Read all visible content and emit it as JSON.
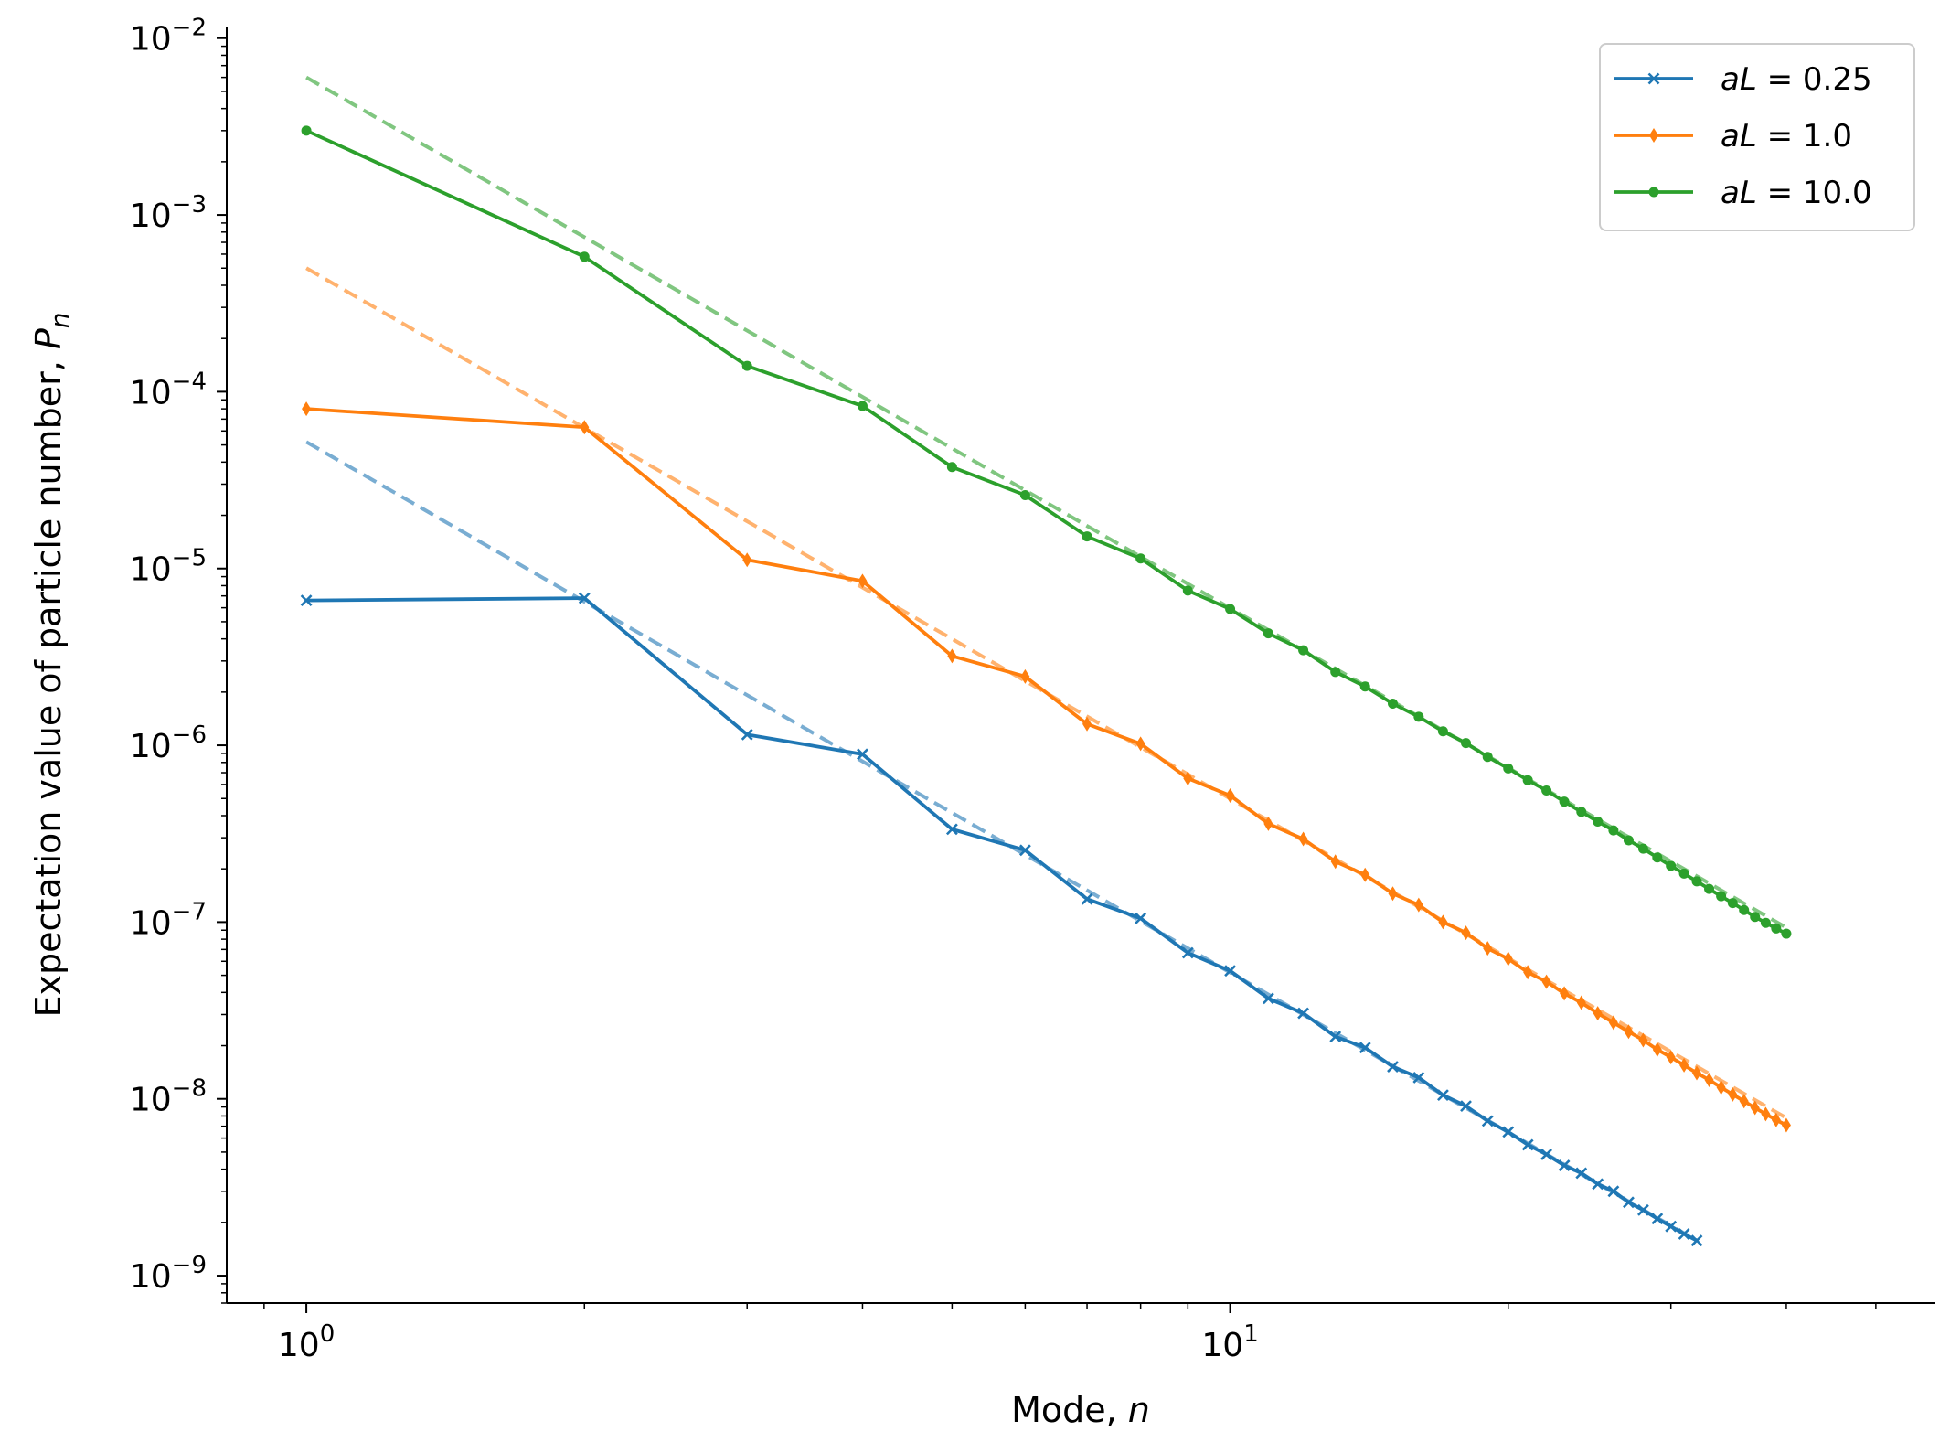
{
  "chart_data": {
    "type": "line",
    "xscale": "log",
    "yscale": "log",
    "xlabel": "Mode, n",
    "ylabel": "Expectation value of particle number, P_n",
    "xlim": [
      0.82,
      58
    ],
    "ylim": [
      7e-10,
      0.0115
    ],
    "x_ticks": [
      {
        "base": "10",
        "exp": "0",
        "value": 1
      },
      {
        "base": "10",
        "exp": "1",
        "value": 10
      }
    ],
    "y_ticks": [
      {
        "base": "10",
        "exp": "−2",
        "value": 0.01
      },
      {
        "base": "10",
        "exp": "−3",
        "value": 0.001
      },
      {
        "base": "10",
        "exp": "−4",
        "value": 0.0001
      },
      {
        "base": "10",
        "exp": "−5",
        "value": 1e-05
      },
      {
        "base": "10",
        "exp": "−6",
        "value": 1e-06
      },
      {
        "base": "10",
        "exp": "−7",
        "value": 1e-07
      },
      {
        "base": "10",
        "exp": "−8",
        "value": 1e-08
      },
      {
        "base": "10",
        "exp": "−9",
        "value": 1e-09
      }
    ],
    "grid": false,
    "legend_position": "top-right",
    "series": [
      {
        "name": "aL = 0.25",
        "legend_label": {
          "var": "aL",
          "eq": " = 0.25"
        },
        "color": "#1f77b4",
        "marker": "x",
        "x_start": 1,
        "values": [
          6.6e-06,
          6.8e-06,
          1.15e-06,
          8.9e-07,
          3.35e-07,
          2.55e-07,
          1.35e-07,
          1.05e-07,
          6.7e-08,
          5.3e-08,
          3.7e-08,
          3.05e-08,
          2.25e-08,
          1.95e-08,
          1.52e-08,
          1.32e-08,
          1.05e-08,
          9.1e-09,
          7.5e-09,
          6.5e-09,
          5.5e-09,
          4.85e-09,
          4.2e-09,
          3.8e-09,
          3.3e-09,
          3e-09,
          2.6e-09,
          2.35e-09,
          2.1e-09,
          1.9e-09,
          1.72e-09,
          1.58e-09
        ],
        "fit": {
          "x": [
            1,
            32
          ],
          "y": [
            5.2e-05,
            1.58e-09
          ]
        }
      },
      {
        "name": "aL = 1.0",
        "legend_label": {
          "var": "aL",
          "eq": " = 1.0"
        },
        "color": "#ff7f0e",
        "marker": "diamond",
        "x_start": 1,
        "values": [
          8e-05,
          6.3e-05,
          1.12e-05,
          8.5e-06,
          3.2e-06,
          2.45e-06,
          1.32e-06,
          1.02e-06,
          6.5e-07,
          5.2e-07,
          3.6e-07,
          2.95e-07,
          2.2e-07,
          1.85e-07,
          1.45e-07,
          1.25e-07,
          1e-07,
          8.7e-08,
          7.1e-08,
          6.2e-08,
          5.2e-08,
          4.6e-08,
          3.95e-08,
          3.5e-08,
          3.05e-08,
          2.7e-08,
          2.4e-08,
          2.15e-08,
          1.9e-08,
          1.72e-08,
          1.55e-08,
          1.4e-08,
          1.28e-08,
          1.16e-08,
          1.06e-08,
          9.7e-09,
          8.9e-09,
          8.2e-09,
          7.6e-09,
          7.1e-09
        ],
        "fit": {
          "x": [
            1,
            40
          ],
          "y": [
            0.0005,
            7.8e-09
          ]
        }
      },
      {
        "name": "aL = 10.0",
        "legend_label": {
          "var": "aL",
          "eq": " = 10.0"
        },
        "color": "#2ca02c",
        "marker": "dot",
        "x_start": 1,
        "values": [
          0.003,
          0.00058,
          0.00014,
          8.3e-05,
          3.75e-05,
          2.6e-05,
          1.52e-05,
          1.14e-05,
          7.5e-06,
          5.9e-06,
          4.3e-06,
          3.45e-06,
          2.6e-06,
          2.15e-06,
          1.72e-06,
          1.45e-06,
          1.2e-06,
          1.03e-06,
          8.6e-07,
          7.4e-07,
          6.35e-07,
          5.55e-07,
          4.8e-07,
          4.2e-07,
          3.7e-07,
          3.3e-07,
          2.9e-07,
          2.6e-07,
          2.32e-07,
          2.08e-07,
          1.88e-07,
          1.7e-07,
          1.54e-07,
          1.4e-07,
          1.28e-07,
          1.17e-07,
          1.07e-07,
          9.9e-08,
          9.2e-08,
          8.6e-08
        ],
        "fit": {
          "x": [
            1,
            40
          ],
          "y": [
            0.006,
            9.3e-08
          ]
        }
      }
    ]
  }
}
